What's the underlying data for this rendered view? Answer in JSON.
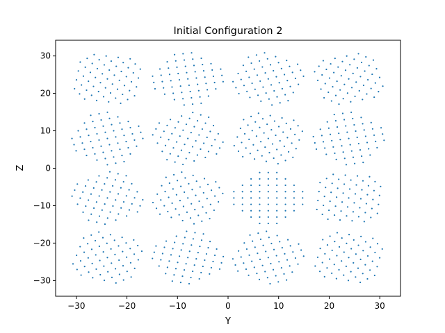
{
  "chart_data": {
    "type": "scatter",
    "title": "Initial Configuration 2",
    "xlabel": "Y",
    "ylabel": "Z",
    "xlim": [
      -34.1,
      34.1
    ],
    "ylim": [
      -34.2,
      34.2
    ],
    "xticks": [
      -30,
      -20,
      -10,
      0,
      10,
      20,
      30
    ],
    "yticks": [
      -30,
      -20,
      -10,
      0,
      10,
      20,
      30
    ],
    "grid": false,
    "marker_color": "#1f77b4",
    "layout": {
      "columns": [
        -23.86,
        -7.95,
        7.95,
        23.86
      ],
      "rows": [
        23.86,
        7.95,
        -7.95,
        -23.86
      ],
      "lattice_spacing": 1.7,
      "cluster_radius": 7.2,
      "cell_halfwidth": 7.6,
      "rotations_deg": [
        [
          36,
          8,
          20,
          -30
        ],
        [
          14,
          -22,
          30,
          10
        ],
        [
          -18,
          24,
          0,
          40
        ],
        [
          28,
          -12,
          17,
          33
        ]
      ]
    }
  }
}
